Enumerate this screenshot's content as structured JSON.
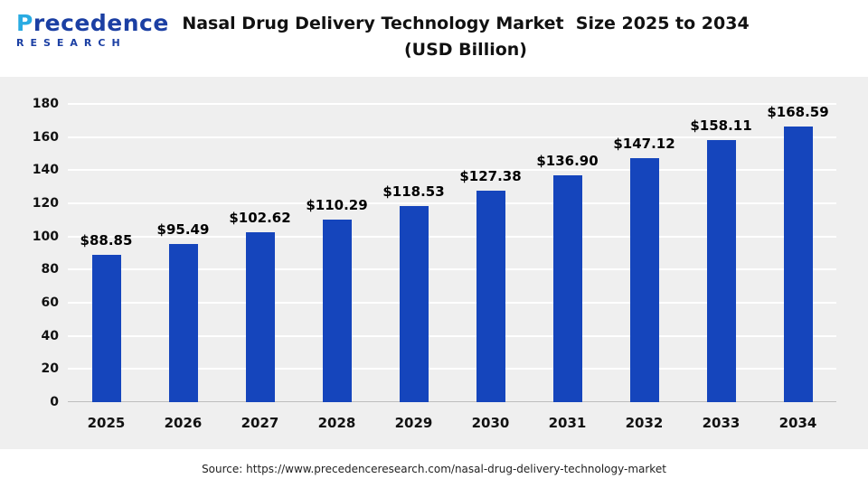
{
  "header": {
    "logo_name": "Precedence",
    "logo_subtitle": "RESEARCH",
    "title_line1": "Nasal Drug Delivery Technology Market  Size 2025 to 2034",
    "title_line2": "(USD Billion)"
  },
  "colors": {
    "bar": "#1545BC",
    "chart_bg": "#EFEFEF",
    "logo_blue": "#1B3FA3",
    "logo_light_blue": "#29ABE2"
  },
  "chart_data": {
    "type": "bar",
    "title": "Nasal Drug Delivery Technology Market Size 2025 to 2034 (USD Billion)",
    "categories": [
      "2025",
      "2026",
      "2027",
      "2028",
      "2029",
      "2030",
      "2031",
      "2032",
      "2033",
      "2034"
    ],
    "values": [
      88.85,
      95.49,
      102.62,
      110.29,
      118.53,
      127.38,
      136.9,
      147.12,
      158.11,
      168.59
    ],
    "labels": [
      "$88.85",
      "$95.49",
      "$102.62",
      "$110.29",
      "$118.53",
      "$127.38",
      "$136.90",
      "$147.12",
      "$158.11",
      "$168.59"
    ],
    "xlabel": "",
    "ylabel": "",
    "ylim": [
      0,
      180
    ],
    "yticks": [
      0,
      20,
      40,
      60,
      80,
      100,
      120,
      140,
      160,
      180
    ],
    "grid": true,
    "legend": false
  },
  "footer": {
    "source": "Source: https://www.precedenceresearch.com/nasal-drug-delivery-technology-market"
  }
}
